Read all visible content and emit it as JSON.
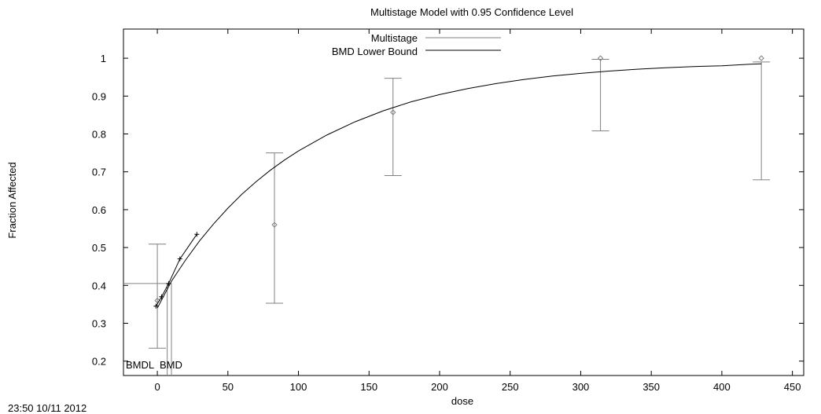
{
  "chart_data": {
    "type": "line",
    "title": "Multistage Model with 0.95 Confidence Level",
    "xlabel": "dose",
    "ylabel": "Fraction Affected",
    "xlim": [
      -24,
      458
    ],
    "ylim": [
      0.162,
      1.077
    ],
    "xticks": [
      0,
      50,
      100,
      150,
      200,
      250,
      300,
      350,
      400,
      450
    ],
    "yticks": [
      0.2,
      0.3,
      0.4,
      0.5,
      0.6,
      0.7,
      0.8,
      0.9,
      1
    ],
    "grid": false,
    "legend_position": "top-center",
    "observed": [
      {
        "x": 0,
        "y": 0.36,
        "lower": 0.234,
        "upper": 0.509
      },
      {
        "x": 83,
        "y": 0.56,
        "lower": 0.353,
        "upper": 0.75
      },
      {
        "x": 167,
        "y": 0.857,
        "lower": 0.69,
        "upper": 0.947
      },
      {
        "x": 314,
        "y": 1.0,
        "lower": 0.808,
        "upper": 0.997
      },
      {
        "x": 428,
        "y": 1.0,
        "lower": 0.679,
        "upper": 0.99
      }
    ],
    "series": [
      {
        "name": "Multistage",
        "x": [
          0,
          10,
          20,
          30,
          40,
          50,
          60,
          70,
          80,
          90,
          100,
          120,
          140,
          160,
          180,
          200,
          220,
          240,
          260,
          280,
          300,
          320,
          340,
          360,
          380,
          400,
          420,
          428
        ],
        "y": [
          0.34,
          0.411,
          0.467,
          0.518,
          0.563,
          0.604,
          0.641,
          0.674,
          0.704,
          0.731,
          0.755,
          0.797,
          0.832,
          0.861,
          0.885,
          0.904,
          0.92,
          0.933,
          0.944,
          0.953,
          0.96,
          0.966,
          0.971,
          0.975,
          0.978,
          0.98,
          0.984,
          0.985
        ]
      },
      {
        "name": "BMD Lower Bound",
        "x": [
          -1,
          3,
          8,
          16,
          28
        ],
        "y": [
          0.345,
          0.37,
          0.405,
          0.47,
          0.535
        ]
      }
    ],
    "bmd": {
      "label": "BMD",
      "x": 10,
      "y": 0.405
    },
    "bmdl": {
      "label": "BMDL",
      "x": 7
    },
    "colors": {
      "model": "#000000",
      "lower_bound": "#000000",
      "data": "#808080",
      "axes": "#000000"
    }
  },
  "timestamp": "23:50 10/11 2012"
}
